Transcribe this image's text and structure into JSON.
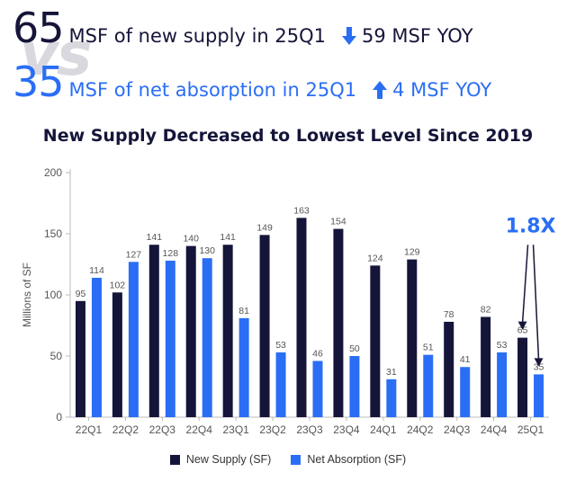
{
  "header": {
    "supply": {
      "value": "65",
      "text": "MSF of new supply in 25Q1",
      "yoy": "59 MSF YOY",
      "yoy_direction": "down"
    },
    "vs_text": "vs",
    "absorption": {
      "value": "35",
      "text": "MSF of net absorption in 25Q1",
      "yoy": "4 MSF YOY",
      "yoy_direction": "up"
    }
  },
  "colors": {
    "supply": "#15153a",
    "absorption": "#2a6ef5",
    "axis": "#bbbbbb",
    "text": "#555555"
  },
  "chart_data": {
    "type": "bar",
    "title": "New Supply Decreased to Lowest Level Since 2019",
    "xlabel": "",
    "ylabel": "Millions of SF",
    "ylim": [
      0,
      200
    ],
    "yticks": [
      0,
      50,
      100,
      150,
      200
    ],
    "grid": false,
    "categories": [
      "22Q1",
      "22Q2",
      "22Q3",
      "22Q4",
      "23Q1",
      "23Q2",
      "23Q3",
      "23Q4",
      "24Q1",
      "24Q2",
      "24Q3",
      "24Q4",
      "25Q1"
    ],
    "series": [
      {
        "name": "New Supply (SF)",
        "color": "#15153a",
        "values": [
          95,
          102,
          141,
          140,
          141,
          149,
          163,
          154,
          124,
          129,
          78,
          82,
          65
        ]
      },
      {
        "name": "Net Absorption (SF)",
        "color": "#2a6ef5",
        "values": [
          114,
          127,
          128,
          130,
          81,
          53,
          46,
          50,
          31,
          51,
          41,
          53,
          35
        ]
      }
    ],
    "annotation": {
      "text": "1.8X",
      "category": "25Q1"
    },
    "legend_position": "bottom"
  }
}
